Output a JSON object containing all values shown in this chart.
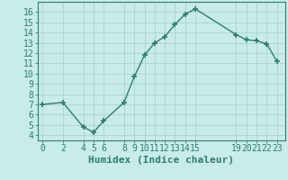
{
  "x": [
    0,
    2,
    4,
    5,
    6,
    8,
    9,
    10,
    11,
    12,
    13,
    14,
    15,
    19,
    20,
    21,
    22,
    23
  ],
  "y": [
    7.0,
    7.2,
    4.8,
    4.3,
    5.4,
    7.2,
    9.7,
    11.8,
    13.0,
    13.6,
    14.8,
    15.8,
    16.3,
    13.8,
    13.3,
    13.2,
    12.9,
    11.2
  ],
  "xlabel": "Humidex (Indice chaleur)",
  "xticks": [
    0,
    2,
    4,
    5,
    6,
    8,
    9,
    10,
    11,
    12,
    13,
    14,
    15,
    19,
    20,
    21,
    22,
    23
  ],
  "yticks": [
    4,
    5,
    6,
    7,
    8,
    9,
    10,
    11,
    12,
    13,
    14,
    15,
    16
  ],
  "ylim": [
    3.5,
    17.0
  ],
  "xlim": [
    -0.5,
    23.8
  ],
  "line_color": "#2e7d6e",
  "marker": "+",
  "bg_color": "#c8ece8",
  "grid_color": "#aad4d0",
  "tick_color": "#2e7d6e",
  "label_color": "#2e7d6e",
  "marker_size": 5,
  "marker_edge_width": 1.2,
  "line_width": 1.0,
  "font_size": 7
}
